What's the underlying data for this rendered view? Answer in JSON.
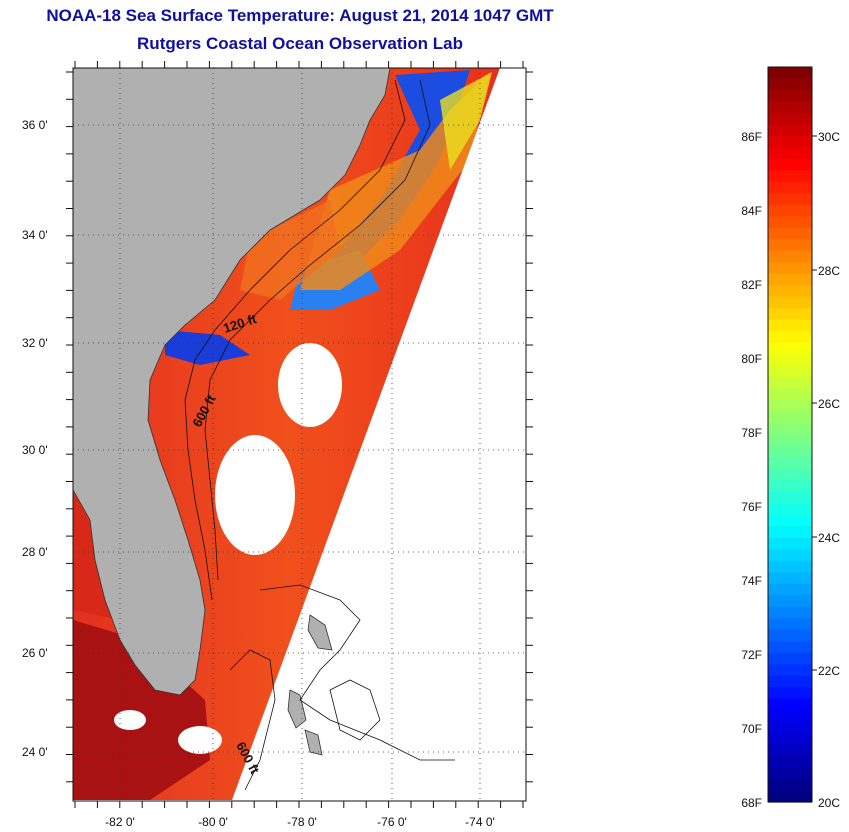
{
  "title": "NOAA-18 Sea Surface Temperature:  August 21, 2014 1047 GMT",
  "subtitle": "Rutgers Coastal Ocean Observation Lab",
  "map": {
    "lat_labels": [
      "36 0'",
      "34 0'",
      "32 0'",
      "30 0'",
      "28 0'",
      "26 0'",
      "24 0'"
    ],
    "lon_labels": [
      "-82 0'",
      "-80 0'",
      "-78 0'",
      "-76 0'",
      "-74 0'"
    ],
    "contour_labels": [
      "120 ft",
      "600 ft",
      "600 ft"
    ],
    "colors": {
      "land": "#b0b0b0",
      "water_warm": "#e8301c",
      "water_hot": "#a01010",
      "water_orange": "#f08a1a",
      "water_yellow": "#e8e020",
      "water_cold": "#1a3cd8",
      "no_data": "#ffffff"
    }
  },
  "colorbar": {
    "fahrenheit_labels": [
      "86F",
      "84F",
      "82F",
      "80F",
      "78F",
      "76F",
      "74F",
      "72F",
      "70F",
      "68F"
    ],
    "celsius_labels": [
      "30C",
      "28C",
      "26C",
      "24C",
      "22C",
      "20C"
    ],
    "range_c": [
      20,
      31
    ],
    "palette": "jet"
  }
}
